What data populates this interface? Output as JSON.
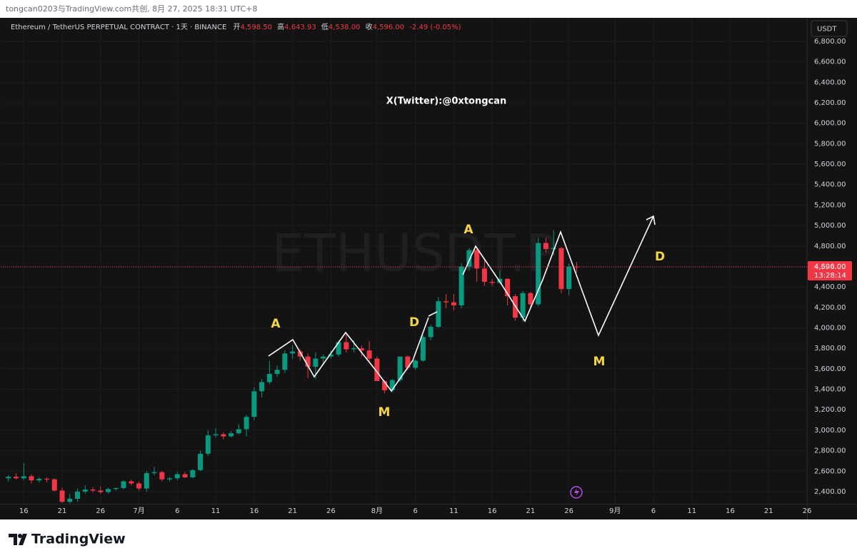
{
  "top_bar": "tongcan0203与TradingView.com共创, 8月 27, 2025 18:31 UTC+8",
  "header": {
    "symbol": "Ethereum / TetherUS PERPETUAL CONTRACT · 1天 · BINANCE",
    "ohlc": [
      {
        "label": "开",
        "value": "4,598.50"
      },
      {
        "label": "高",
        "value": "4,643.93"
      },
      {
        "label": "低",
        "value": "4,538.00"
      },
      {
        "label": "收",
        "value": "4,596.00"
      }
    ],
    "change": "-2.49 (-0.05%)"
  },
  "currency": "USDT",
  "footer": "TradingView",
  "chart_data": {
    "type": "candlestick",
    "watermark": "ETHUSDT.P",
    "handle": "X(Twitter):@0xtongcan",
    "annotations": [
      "A",
      "M",
      "D",
      "A",
      "M",
      "D"
    ],
    "up_color": "#089981",
    "down_color": "#f23645",
    "grid": true,
    "x": [
      "2025-06-14",
      "2025-06-15",
      "2025-06-16",
      "2025-06-17",
      "2025-06-18",
      "2025-06-19",
      "2025-06-20",
      "2025-06-21",
      "2025-06-22",
      "2025-06-23",
      "2025-06-24",
      "2025-06-25",
      "2025-06-26",
      "2025-06-27",
      "2025-06-28",
      "2025-06-29",
      "2025-06-30",
      "2025-07-01",
      "2025-07-02",
      "2025-07-03",
      "2025-07-04",
      "2025-07-05",
      "2025-07-06",
      "2025-07-07",
      "2025-07-08",
      "2025-07-09",
      "2025-07-10",
      "2025-07-11",
      "2025-07-12",
      "2025-07-13",
      "2025-07-14",
      "2025-07-15",
      "2025-07-16",
      "2025-07-17",
      "2025-07-18",
      "2025-07-19",
      "2025-07-20",
      "2025-07-21",
      "2025-07-22",
      "2025-07-23",
      "2025-07-24",
      "2025-07-25",
      "2025-07-26",
      "2025-07-27",
      "2025-07-28",
      "2025-07-29",
      "2025-07-30",
      "2025-07-31",
      "2025-08-01",
      "2025-08-02",
      "2025-08-03",
      "2025-08-04",
      "2025-08-05",
      "2025-08-06",
      "2025-08-07",
      "2025-08-08",
      "2025-08-09",
      "2025-08-10",
      "2025-08-11",
      "2025-08-12",
      "2025-08-13",
      "2025-08-14",
      "2025-08-15",
      "2025-08-16",
      "2025-08-17",
      "2025-08-18",
      "2025-08-19",
      "2025-08-20",
      "2025-08-21",
      "2025-08-22",
      "2025-08-23",
      "2025-08-24",
      "2025-08-25",
      "2025-08-26",
      "2025-08-27"
    ],
    "open": [
      2530,
      2545,
      2530,
      2550,
      2510,
      2525,
      2520,
      2410,
      2300,
      2330,
      2400,
      2420,
      2410,
      2395,
      2425,
      2435,
      2500,
      2480,
      2430,
      2580,
      2590,
      2520,
      2530,
      2570,
      2540,
      2610,
      2770,
      2950,
      2960,
      2940,
      2970,
      3010,
      3130,
      3380,
      3470,
      3550,
      3590,
      3750,
      3770,
      3720,
      3620,
      3700,
      3720,
      3740,
      3860,
      3790,
      3800,
      3780,
      3700,
      3480,
      3390,
      3490,
      3720,
      3610,
      3680,
      3910,
      4010,
      4260,
      4250,
      4220,
      4600,
      4760,
      4580,
      4450,
      4440,
      4480,
      4310,
      4100,
      4340,
      4230,
      4830,
      4770,
      4780,
      4380,
      4598.5
    ],
    "high": [
      2560,
      2580,
      2680,
      2570,
      2540,
      2540,
      2530,
      2440,
      2380,
      2430,
      2460,
      2440,
      2450,
      2440,
      2440,
      2510,
      2520,
      2500,
      2600,
      2640,
      2600,
      2540,
      2590,
      2590,
      2620,
      2800,
      3000,
      3020,
      2980,
      2990,
      3060,
      3150,
      3420,
      3500,
      3680,
      3630,
      3780,
      3830,
      3790,
      3750,
      3760,
      3740,
      3780,
      3880,
      3940,
      3880,
      3830,
      3870,
      3720,
      3490,
      3500,
      3720,
      3730,
      3690,
      3930,
      4030,
      4300,
      4330,
      4330,
      4630,
      4780,
      4790,
      4680,
      4480,
      4560,
      4480,
      4330,
      4360,
      4350,
      4880,
      4880,
      4955,
      4790,
      4630,
      4643.93
    ],
    "low": [
      2500,
      2520,
      2510,
      2480,
      2490,
      2490,
      2400,
      2290,
      2285,
      2300,
      2380,
      2390,
      2380,
      2380,
      2410,
      2420,
      2460,
      2410,
      2400,
      2560,
      2500,
      2500,
      2510,
      2530,
      2530,
      2600,
      2750,
      2930,
      2910,
      2930,
      2960,
      2940,
      3100,
      3320,
      3450,
      3520,
      3560,
      3700,
      3680,
      3510,
      3500,
      3640,
      3700,
      3720,
      3760,
      3760,
      3720,
      3660,
      3480,
      3360,
      3370,
      3470,
      3590,
      3590,
      3670,
      3880,
      4000,
      4190,
      4170,
      4190,
      4560,
      4450,
      4410,
      4410,
      4430,
      4220,
      4070,
      4060,
      4200,
      4210,
      4740,
      4710,
      4340,
      4320,
      4538
    ],
    "close": [
      2545,
      2530,
      2550,
      2510,
      2525,
      2520,
      2410,
      2300,
      2330,
      2400,
      2420,
      2410,
      2395,
      2425,
      2435,
      2500,
      2480,
      2430,
      2580,
      2590,
      2520,
      2530,
      2570,
      2540,
      2610,
      2770,
      2950,
      2960,
      2940,
      2970,
      3010,
      3130,
      3380,
      3470,
      3550,
      3590,
      3750,
      3770,
      3720,
      3620,
      3700,
      3720,
      3740,
      3860,
      3790,
      3800,
      3780,
      3700,
      3480,
      3390,
      3490,
      3720,
      3610,
      3680,
      3910,
      4010,
      4260,
      4250,
      4220,
      4600,
      4760,
      4580,
      4450,
      4440,
      4480,
      4310,
      4100,
      4340,
      4230,
      4830,
      4770,
      4780,
      4380,
      4600,
      4596
    ],
    "xlim": [
      "2025-06-13",
      "2025-09-26"
    ],
    "xticks": [
      {
        "value": "2025-06-16",
        "label": "16"
      },
      {
        "value": "2025-06-21",
        "label": "21"
      },
      {
        "value": "2025-06-26",
        "label": "26"
      },
      {
        "value": "2025-07-01",
        "label": "7月"
      },
      {
        "value": "2025-07-06",
        "label": "6"
      },
      {
        "value": "2025-07-11",
        "label": "11"
      },
      {
        "value": "2025-07-16",
        "label": "16"
      },
      {
        "value": "2025-07-21",
        "label": "21"
      },
      {
        "value": "2025-07-26",
        "label": "26"
      },
      {
        "value": "2025-08-01",
        "label": "8月"
      },
      {
        "value": "2025-08-06",
        "label": "6"
      },
      {
        "value": "2025-08-11",
        "label": "11"
      },
      {
        "value": "2025-08-16",
        "label": "16"
      },
      {
        "value": "2025-08-21",
        "label": "21"
      },
      {
        "value": "2025-08-26",
        "label": "26"
      },
      {
        "value": "2025-09-01",
        "label": "9月"
      },
      {
        "value": "2025-09-06",
        "label": "6"
      },
      {
        "value": "2025-09-11",
        "label": "11"
      },
      {
        "value": "2025-09-16",
        "label": "16"
      },
      {
        "value": "2025-09-21",
        "label": "21"
      },
      {
        "value": "2025-09-26",
        "label": "26"
      }
    ],
    "ylim": [
      2281,
      7030
    ],
    "yticks": [
      {
        "value": 2400,
        "label": "2,400.00"
      },
      {
        "value": 2600,
        "label": "2,600.00"
      },
      {
        "value": 2800,
        "label": "2,800.00"
      },
      {
        "value": 3000,
        "label": "3,000.00"
      },
      {
        "value": 3200,
        "label": "3,200.00"
      },
      {
        "value": 3400,
        "label": "3,400.00"
      },
      {
        "value": 3600,
        "label": "3,600.00"
      },
      {
        "value": 3800,
        "label": "3,800.00"
      },
      {
        "value": 4000,
        "label": "4,000.00"
      },
      {
        "value": 4200,
        "label": "4,200.00"
      },
      {
        "value": 4400,
        "label": "4,400.00"
      },
      {
        "value": 4600,
        "label": "4,600.00"
      },
      {
        "value": 4800,
        "label": "4,800.00"
      },
      {
        "value": 5000,
        "label": "5,000.00"
      },
      {
        "value": 5200,
        "label": "5,200.00"
      },
      {
        "value": 5400,
        "label": "5,400.00"
      },
      {
        "value": 5600,
        "label": "5,600.00"
      },
      {
        "value": 5800,
        "label": "5,800.00"
      },
      {
        "value": 6000,
        "label": "6,000.00"
      },
      {
        "value": 6200,
        "label": "6,200.00"
      },
      {
        "value": 6400,
        "label": "6,400.00"
      },
      {
        "value": 6600,
        "label": "6,600.00"
      },
      {
        "value": 6800,
        "label": "6,800.00"
      }
    ],
    "last_price": {
      "value": 4596,
      "label": "4,596.00"
    },
    "countdown": "13:28:14"
  }
}
